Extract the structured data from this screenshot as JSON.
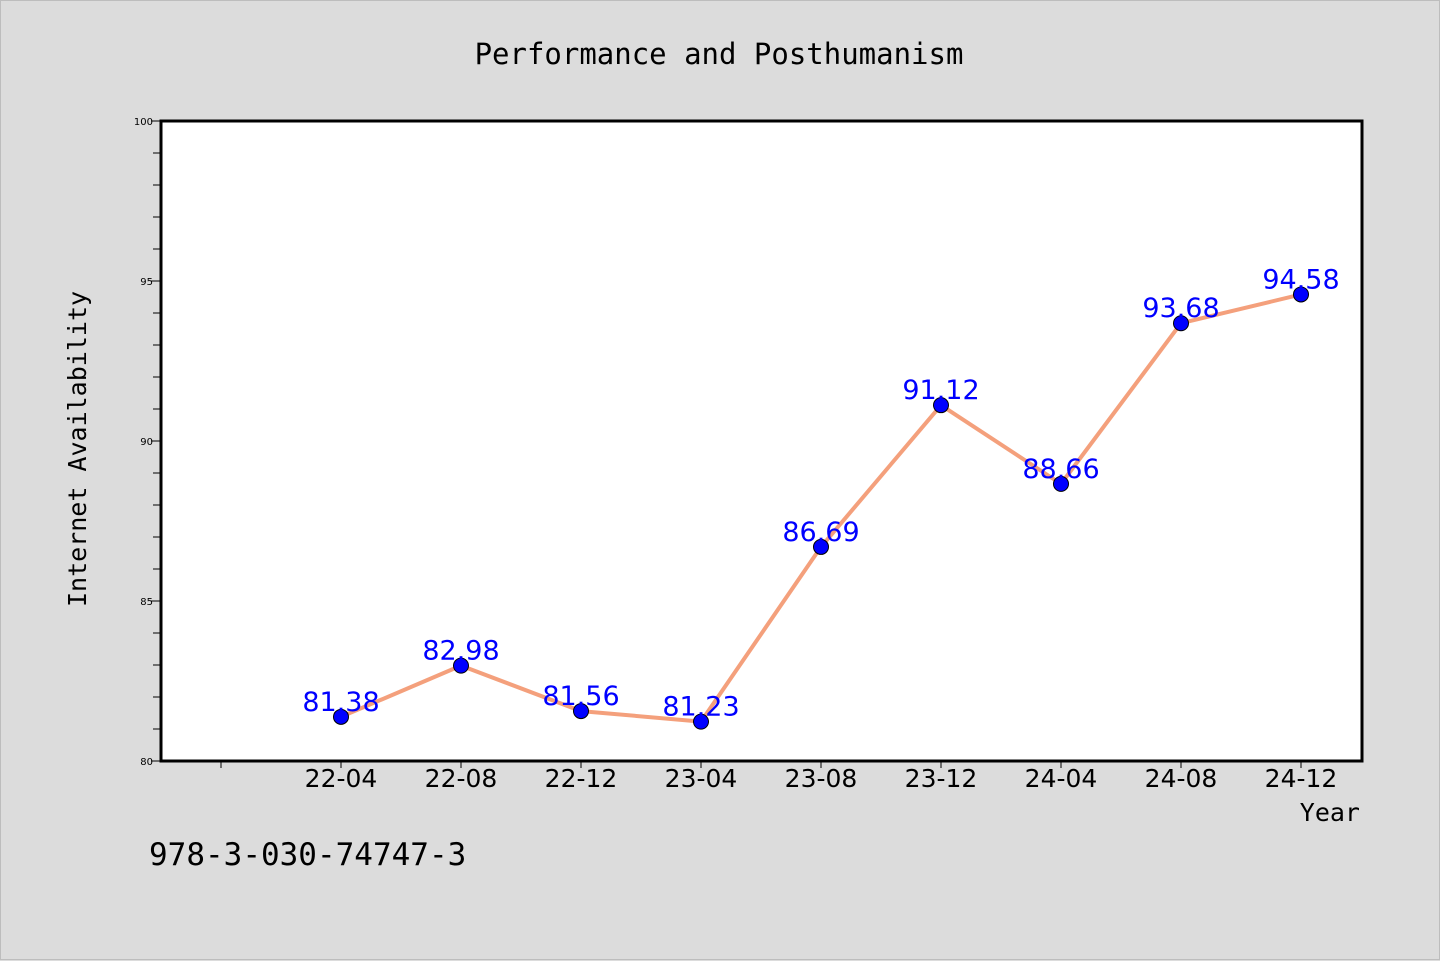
{
  "chart_data": {
    "type": "line",
    "title": "Performance and Posthumanism",
    "xlabel": "Year",
    "ylabel": "Internet Availability",
    "categories": [
      "22-04",
      "22-08",
      "22-12",
      "23-04",
      "23-08",
      "23-12",
      "24-04",
      "24-08",
      "24-12"
    ],
    "series": [
      {
        "values": [
          81.38,
          82.98,
          81.56,
          81.23,
          86.69,
          91.12,
          88.66,
          93.68,
          94.58
        ],
        "line_color": "#f4a07c",
        "marker_color": "#0000ff"
      }
    ],
    "data_labels": [
      "81.38",
      "82.98",
      "81.56",
      "81.23",
      "86.69",
      "91.12",
      "88.66",
      "93.68",
      "94.58"
    ],
    "ylim": [
      80,
      100
    ],
    "yticks": [
      80,
      85,
      90,
      95,
      100
    ],
    "grid": false,
    "legend": "none"
  },
  "footer_text": "978-3-030-74747-3"
}
